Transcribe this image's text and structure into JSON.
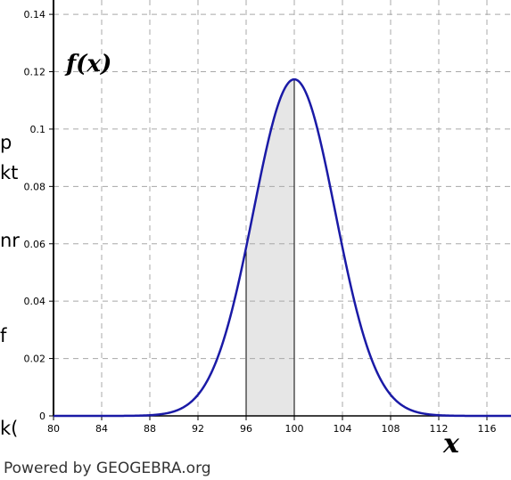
{
  "page": {
    "credit": "Powered by GEOGEBRA.org",
    "left_fragments": [
      "p",
      "kt",
      "nr",
      "f",
      "k("
    ]
  },
  "chart_data": {
    "type": "line",
    "title": "",
    "xlabel": "x",
    "ylabel": "f(x)",
    "xlim": [
      80,
      118
    ],
    "ylim": [
      0,
      0.145
    ],
    "xticks": [
      80,
      84,
      88,
      92,
      96,
      100,
      104,
      108,
      112,
      116
    ],
    "yticks": [
      0,
      0.02,
      0.04,
      0.06,
      0.08,
      0.1,
      0.12,
      0.14
    ],
    "ytick_labels": [
      "0",
      "0.02",
      "0.04",
      "0.06",
      "0.08",
      "0.1",
      "0.12",
      "0.14"
    ],
    "grid": true,
    "series": [
      {
        "color": "#1a1aa6",
        "distribution": "normal",
        "mean": 100,
        "sd": 3.4
      }
    ],
    "shaded_region": {
      "from": 96,
      "to": 100,
      "color": "#e6e6e6"
    }
  }
}
